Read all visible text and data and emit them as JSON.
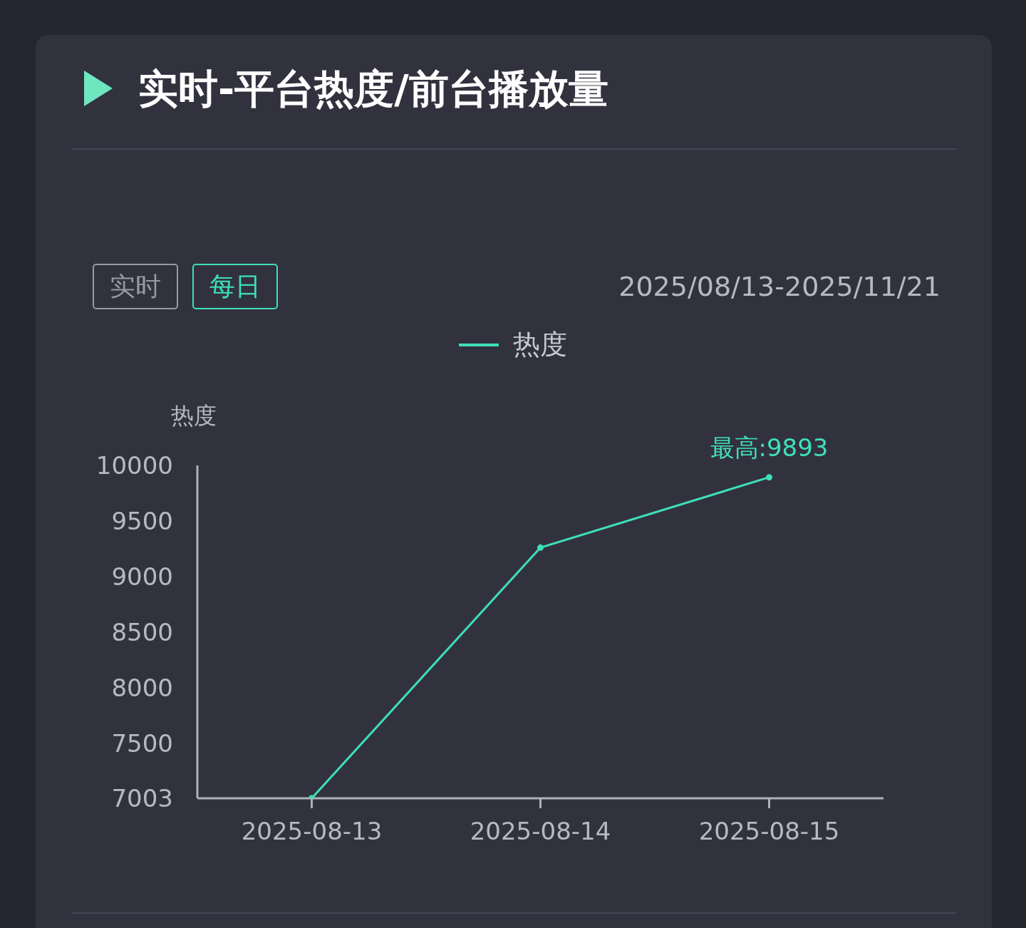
{
  "chart_data": {
    "type": "line",
    "title": "实时-平台热度/前台播放量",
    "ylabel": "热度",
    "categories": [
      "2025-08-13",
      "2025-08-14",
      "2025-08-15"
    ],
    "series": [
      {
        "name": "热度",
        "color": "#3ee0b8",
        "values": [
          7003,
          9260,
          9893
        ]
      }
    ],
    "ylim": [
      7003,
      10000
    ],
    "yticks": [
      7003,
      7500,
      8000,
      8500,
      9000,
      9500,
      10000
    ],
    "grid": false,
    "legend": "top",
    "marker": "circle",
    "line_style": "solid",
    "annotations": [
      "实时",
      "每日",
      "2025/08/13-2025/11/21",
      {
        "text": "最高:9893",
        "x": "2025-08-15",
        "y": 9893
      }
    ]
  }
}
